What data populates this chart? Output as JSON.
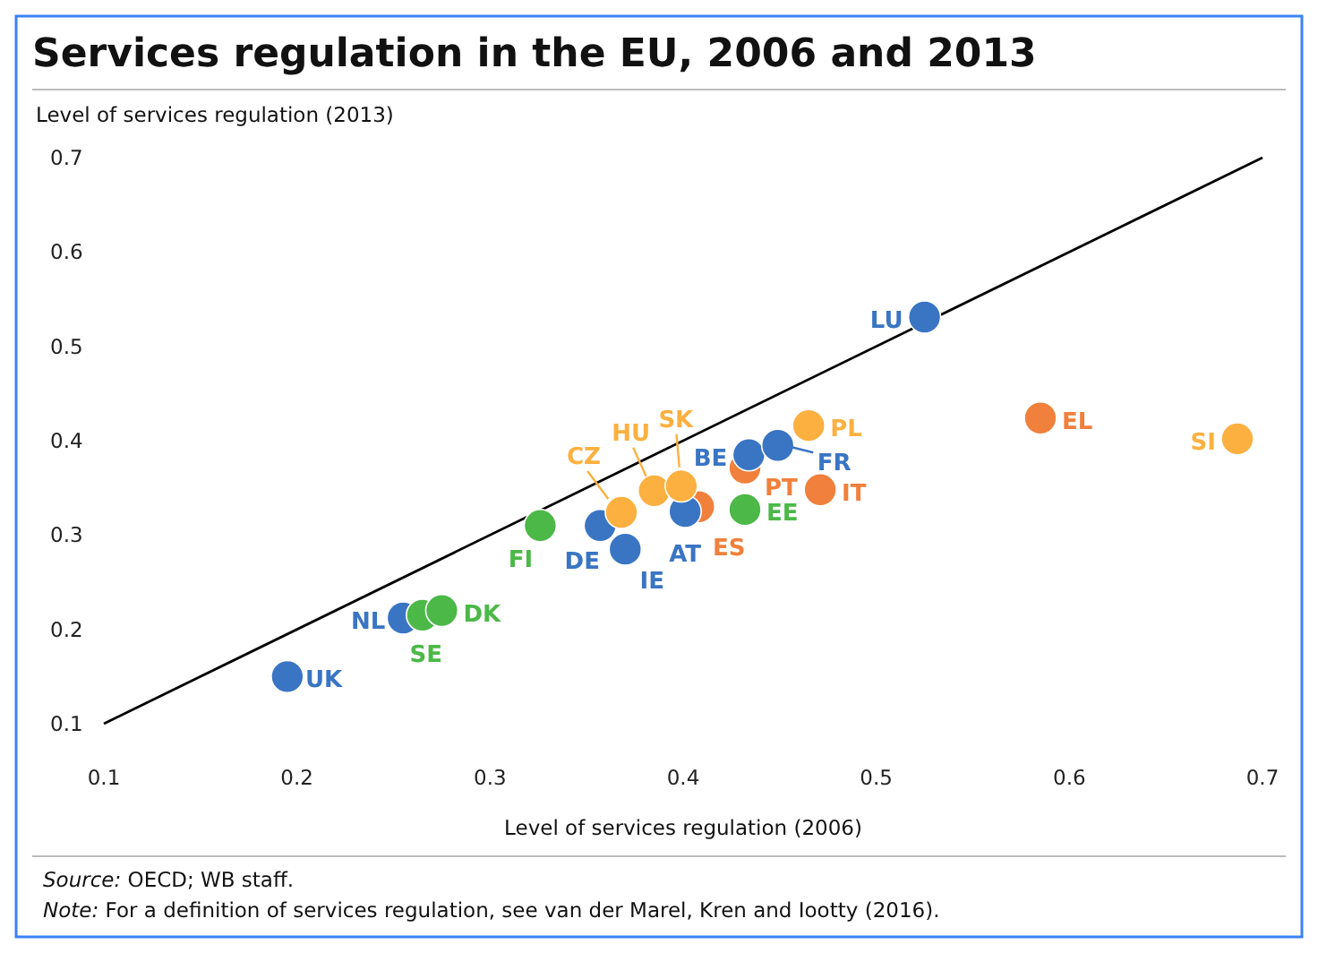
{
  "chart_data": {
    "type": "scatter",
    "title": "Services regulation in the EU, 2006 and 2013",
    "xlabel": "Level of services regulation (2006)",
    "ylabel": "Level of services regulation (2013)",
    "xlim": [
      0.1,
      0.7
    ],
    "xticks": [
      0.1,
      0.2,
      0.3,
      0.4,
      0.5,
      0.6,
      0.7
    ],
    "ylim": [
      0.1,
      0.7
    ],
    "yticks": [
      0.1,
      0.2,
      0.3,
      0.4,
      0.5,
      0.6,
      0.7
    ],
    "grid": false,
    "marker": "circle",
    "series": [
      {
        "color": "#f0803c",
        "x": [
          0.408,
          0.432,
          0.471,
          0.585
        ],
        "values": [
          0.33,
          0.371,
          0.348,
          0.424
        ]
      },
      {
        "color": "#3a75c4",
        "x": [
          0.195,
          0.255,
          0.357,
          0.37,
          0.401,
          0.434,
          0.449,
          0.525
        ],
        "values": [
          0.15,
          0.212,
          0.31,
          0.285,
          0.325,
          0.385,
          0.395,
          0.531
        ]
      },
      {
        "color": "#fbb040",
        "x": [
          0.368,
          0.385,
          0.399,
          0.465,
          0.687
        ],
        "values": [
          0.324,
          0.347,
          0.352,
          0.416,
          0.402
        ]
      },
      {
        "color": "#4cb848",
        "x": [
          0.265,
          0.275,
          0.326,
          0.432
        ],
        "values": [
          0.215,
          0.22,
          0.31,
          0.327
        ]
      },
      {
        "type": "line",
        "marker": "none",
        "color": "#000000",
        "x": [
          0.1,
          0.7
        ],
        "values": [
          0.1,
          0.7
        ]
      }
    ],
    "annotations": [
      {
        "text": "UK",
        "x": 0.195,
        "y": 0.15
      },
      {
        "text": "NL",
        "x": 0.255,
        "y": 0.212
      },
      {
        "text": "DE",
        "x": 0.357,
        "y": 0.31
      },
      {
        "text": "IE",
        "x": 0.37,
        "y": 0.285
      },
      {
        "text": "AT",
        "x": 0.401,
        "y": 0.325
      },
      {
        "text": "BE",
        "x": 0.434,
        "y": 0.385
      },
      {
        "text": "FR",
        "x": 0.449,
        "y": 0.395
      },
      {
        "text": "LU",
        "x": 0.525,
        "y": 0.531
      },
      {
        "text": "ES",
        "x": 0.408,
        "y": 0.33
      },
      {
        "text": "PT",
        "x": 0.432,
        "y": 0.371
      },
      {
        "text": "IT",
        "x": 0.471,
        "y": 0.348
      },
      {
        "text": "EL",
        "x": 0.585,
        "y": 0.424
      },
      {
        "text": "CZ",
        "x": 0.368,
        "y": 0.324
      },
      {
        "text": "HU",
        "x": 0.385,
        "y": 0.347
      },
      {
        "text": "SK",
        "x": 0.399,
        "y": 0.352
      },
      {
        "text": "PL",
        "x": 0.465,
        "y": 0.416
      },
      {
        "text": "SI",
        "x": 0.687,
        "y": 0.402
      },
      {
        "text": "SE",
        "x": 0.265,
        "y": 0.215
      },
      {
        "text": "DK",
        "x": 0.275,
        "y": 0.22
      },
      {
        "text": "FI",
        "x": 0.326,
        "y": 0.31
      },
      {
        "text": "EE",
        "x": 0.432,
        "y": 0.327
      },
      "Source: OECD; WB staff.",
      "Note: For a definition of services regulation, see van der Marel, Kren and Iootty (2016)."
    ]
  }
}
